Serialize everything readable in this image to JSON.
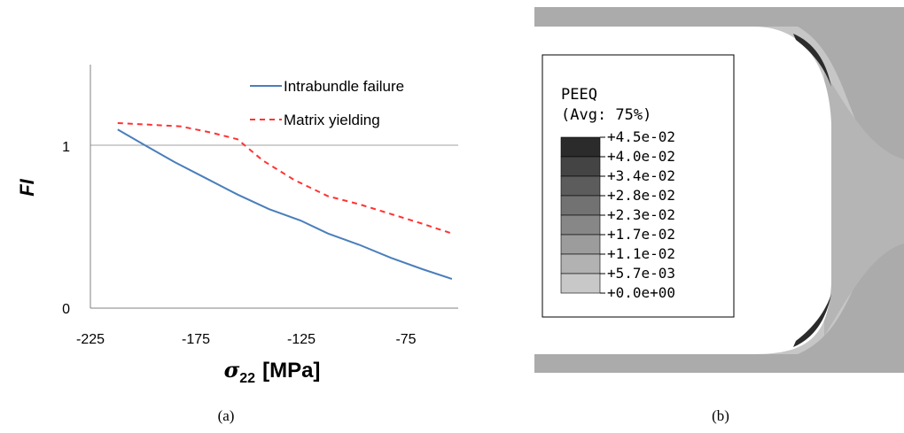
{
  "chart_data": [
    {
      "type": "line",
      "title": "",
      "xlabel_symbol": "σ",
      "xlabel_sub": "22",
      "xlabel_unit": "[MPa]",
      "ylabel": "FI",
      "xlim": [
        -225,
        -50
      ],
      "ylim": [
        0,
        1.5
      ],
      "xticks": [
        -225,
        -175,
        -125,
        -75
      ],
      "yticks": [
        0,
        1
      ],
      "hgrid_at": 1,
      "legend": "top-right",
      "series": [
        {
          "name": "Intrabundle failure",
          "color": "#4a7ebb",
          "dash": "solid",
          "x": [
            -212,
            -200,
            -185,
            -170,
            -155,
            -140,
            -125,
            -112,
            -97,
            -82,
            -67,
            -53
          ],
          "y": [
            1.1,
            1.01,
            0.9,
            0.8,
            0.7,
            0.61,
            0.54,
            0.46,
            0.39,
            0.31,
            0.24,
            0.18
          ]
        },
        {
          "name": "Matrix yielding",
          "color": "#ff3333",
          "dash": "dashed",
          "x": [
            -212,
            -197,
            -182,
            -167,
            -155,
            -143,
            -128,
            -112,
            -97,
            -82,
            -67,
            -53
          ],
          "y": [
            1.14,
            1.13,
            1.12,
            1.08,
            1.04,
            0.91,
            0.79,
            0.69,
            0.64,
            0.58,
            0.52,
            0.46
          ]
        }
      ]
    },
    {
      "type": "heatmap",
      "legend_title_1": "PEEQ",
      "legend_title_2": "(Avg: 75%)",
      "legend": "top-left",
      "levels": [
        {
          "label": "+4.5e-02",
          "color": "#2b2b2b"
        },
        {
          "label": "+4.0e-02",
          "color": "#444444"
        },
        {
          "label": "+3.4e-02",
          "color": "#5c5c5c"
        },
        {
          "label": "+2.8e-02",
          "color": "#727272"
        },
        {
          "label": "+2.3e-02",
          "color": "#878787"
        },
        {
          "label": "+1.7e-02",
          "color": "#9c9c9c"
        },
        {
          "label": "+1.1e-02",
          "color": "#b2b2b2"
        },
        {
          "label": "+5.7e-03",
          "color": "#c8c8c8"
        },
        {
          "label": "+0.0e+00",
          "color": "#dcdcdc"
        }
      ]
    }
  ],
  "captions": {
    "a": "(a)",
    "b": "(b)"
  },
  "colors": {
    "grid": "#a0a0a0",
    "axis": "#808080",
    "contour_bg": "#ababab",
    "contour_light": "#d0d0d0"
  }
}
